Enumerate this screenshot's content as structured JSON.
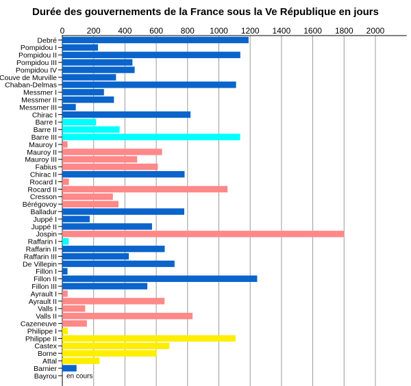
{
  "chart_data": {
    "type": "bar",
    "orientation": "horizontal",
    "title": "Durée des gouvernements de la France sous la Ve République en jours",
    "xlabel": "",
    "ylabel": "",
    "xlim": [
      0,
      2200
    ],
    "xticks": [
      0,
      200,
      400,
      600,
      800,
      1000,
      1200,
      1400,
      1600,
      1800,
      2000
    ],
    "grid": true,
    "legend": "none",
    "colors": {
      "dark_blue": "#0a64cb",
      "cyan": "#00ffff",
      "salmon": "#ff8888",
      "yellow": "#ffee00"
    },
    "categories": [
      "Debré",
      "Pompidou I",
      "Pompidou II",
      "Pompidou III",
      "Pompidou IV",
      "Couve de Murville",
      "Chaban-Delmas",
      "Messmer I",
      "Messmer II",
      "Messmer III",
      "Chirac I",
      "Barre I",
      "Barre II",
      "Barre III",
      "Mauroy I",
      "Mauroy II",
      "Mauroy III",
      "Fabius",
      "Chirac II",
      "Rocard I",
      "Rocard II",
      "Cresson",
      "Bérégovoy",
      "Balladur",
      "Juppé I",
      "Juppé II",
      "Jospin",
      "Raffarin I",
      "Raffarin II",
      "Raffarin III",
      "De Villepin",
      "Fillon I",
      "Fillon II",
      "Fillon III",
      "Ayrault I",
      "Ayrault II",
      "Valls I",
      "Valls II",
      "Cazeneuve",
      "Philippe I",
      "Philippe II",
      "Castex",
      "Borne",
      "Attal",
      "Barnier",
      "Bayrou"
    ],
    "values": [
      1190,
      228,
      1137,
      448,
      462,
      343,
      1110,
      266,
      330,
      86,
      819,
      216,
      366,
      1136,
      33,
      637,
      478,
      610,
      781,
      42,
      1056,
      323,
      359,
      779,
      175,
      573,
      1800,
      41,
      654,
      425,
      717,
      33,
      1245,
      543,
      34,
      653,
      146,
      832,
      157,
      35,
      1107,
      684,
      603,
      238,
      91,
      null
    ],
    "bar_colors": [
      "dark_blue",
      "dark_blue",
      "dark_blue",
      "dark_blue",
      "dark_blue",
      "dark_blue",
      "dark_blue",
      "dark_blue",
      "dark_blue",
      "dark_blue",
      "dark_blue",
      "cyan",
      "cyan",
      "cyan",
      "salmon",
      "salmon",
      "salmon",
      "salmon",
      "dark_blue",
      "salmon",
      "salmon",
      "salmon",
      "salmon",
      "dark_blue",
      "dark_blue",
      "dark_blue",
      "salmon",
      "cyan",
      "dark_blue",
      "dark_blue",
      "dark_blue",
      "dark_blue",
      "dark_blue",
      "dark_blue",
      "salmon",
      "salmon",
      "salmon",
      "salmon",
      "salmon",
      "yellow",
      "yellow",
      "yellow",
      "yellow",
      "yellow",
      "dark_blue",
      "none"
    ],
    "annotations": [
      {
        "category": "Bayrou",
        "text": "en cours"
      }
    ]
  }
}
